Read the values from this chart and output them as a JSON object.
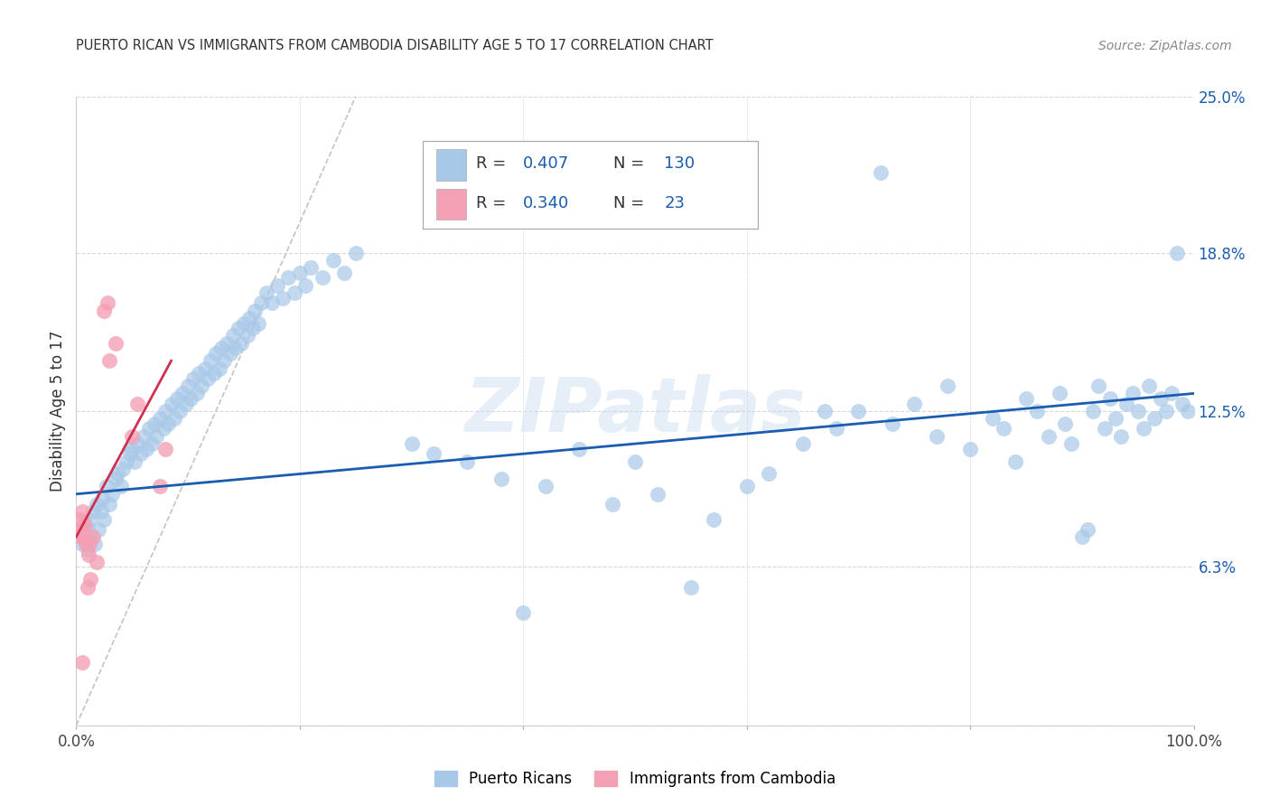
{
  "title": "PUERTO RICAN VS IMMIGRANTS FROM CAMBODIA DISABILITY AGE 5 TO 17 CORRELATION CHART",
  "source": "Source: ZipAtlas.com",
  "ylabel": "Disability Age 5 to 17",
  "xlim": [
    0,
    100
  ],
  "ylim": [
    0,
    25
  ],
  "ytick_labels": [
    "6.3%",
    "12.5%",
    "18.8%",
    "25.0%"
  ],
  "ytick_values": [
    6.3,
    12.5,
    18.8,
    25.0
  ],
  "xtick_positions": [
    0,
    20,
    40,
    60,
    80,
    100
  ],
  "xtick_labels": [
    "0.0%",
    "",
    "",
    "",
    "",
    "100.0%"
  ],
  "watermark": "ZIPatlas",
  "blue_color": "#A8C8E8",
  "pink_color": "#F4A0B5",
  "blue_line_color": "#1A5CB0",
  "pink_line_color": "#D03050",
  "diagonal_color": "#C8C0C8",
  "r_n_color": "#1A5CB0",
  "blue_scatter": [
    [
      0.3,
      7.8
    ],
    [
      0.5,
      7.2
    ],
    [
      0.7,
      7.5
    ],
    [
      0.8,
      8.0
    ],
    [
      1.0,
      7.0
    ],
    [
      1.0,
      7.8
    ],
    [
      1.2,
      8.2
    ],
    [
      1.3,
      7.5
    ],
    [
      1.5,
      8.5
    ],
    [
      1.7,
      7.2
    ],
    [
      1.8,
      8.8
    ],
    [
      2.0,
      7.8
    ],
    [
      2.2,
      8.5
    ],
    [
      2.3,
      9.0
    ],
    [
      2.5,
      8.2
    ],
    [
      2.7,
      9.5
    ],
    [
      3.0,
      8.8
    ],
    [
      3.2,
      9.2
    ],
    [
      3.5,
      9.8
    ],
    [
      3.7,
      10.0
    ],
    [
      4.0,
      9.5
    ],
    [
      4.2,
      10.2
    ],
    [
      4.5,
      10.5
    ],
    [
      4.8,
      10.8
    ],
    [
      5.0,
      11.0
    ],
    [
      5.2,
      10.5
    ],
    [
      5.5,
      11.2
    ],
    [
      5.8,
      10.8
    ],
    [
      6.0,
      11.5
    ],
    [
      6.3,
      11.0
    ],
    [
      6.5,
      11.8
    ],
    [
      6.8,
      11.2
    ],
    [
      7.0,
      12.0
    ],
    [
      7.2,
      11.5
    ],
    [
      7.5,
      12.2
    ],
    [
      7.8,
      11.8
    ],
    [
      8.0,
      12.5
    ],
    [
      8.2,
      12.0
    ],
    [
      8.5,
      12.8
    ],
    [
      8.8,
      12.2
    ],
    [
      9.0,
      13.0
    ],
    [
      9.3,
      12.5
    ],
    [
      9.5,
      13.2
    ],
    [
      9.8,
      12.8
    ],
    [
      10.0,
      13.5
    ],
    [
      10.2,
      13.0
    ],
    [
      10.5,
      13.8
    ],
    [
      10.8,
      13.2
    ],
    [
      11.0,
      14.0
    ],
    [
      11.2,
      13.5
    ],
    [
      11.5,
      14.2
    ],
    [
      11.8,
      13.8
    ],
    [
      12.0,
      14.5
    ],
    [
      12.3,
      14.0
    ],
    [
      12.5,
      14.8
    ],
    [
      12.8,
      14.2
    ],
    [
      13.0,
      15.0
    ],
    [
      13.2,
      14.5
    ],
    [
      13.5,
      15.2
    ],
    [
      13.8,
      14.8
    ],
    [
      14.0,
      15.5
    ],
    [
      14.2,
      15.0
    ],
    [
      14.5,
      15.8
    ],
    [
      14.8,
      15.2
    ],
    [
      15.0,
      16.0
    ],
    [
      15.3,
      15.5
    ],
    [
      15.5,
      16.2
    ],
    [
      15.8,
      15.8
    ],
    [
      16.0,
      16.5
    ],
    [
      16.3,
      16.0
    ],
    [
      16.5,
      16.8
    ],
    [
      17.0,
      17.2
    ],
    [
      17.5,
      16.8
    ],
    [
      18.0,
      17.5
    ],
    [
      18.5,
      17.0
    ],
    [
      19.0,
      17.8
    ],
    [
      19.5,
      17.2
    ],
    [
      20.0,
      18.0
    ],
    [
      20.5,
      17.5
    ],
    [
      21.0,
      18.2
    ],
    [
      22.0,
      17.8
    ],
    [
      23.0,
      18.5
    ],
    [
      24.0,
      18.0
    ],
    [
      25.0,
      18.8
    ],
    [
      30.0,
      11.2
    ],
    [
      32.0,
      10.8
    ],
    [
      35.0,
      10.5
    ],
    [
      38.0,
      9.8
    ],
    [
      40.0,
      4.5
    ],
    [
      42.0,
      9.5
    ],
    [
      45.0,
      11.0
    ],
    [
      48.0,
      8.8
    ],
    [
      50.0,
      10.5
    ],
    [
      52.0,
      9.2
    ],
    [
      55.0,
      5.5
    ],
    [
      57.0,
      8.2
    ],
    [
      60.0,
      9.5
    ],
    [
      62.0,
      10.0
    ],
    [
      65.0,
      11.2
    ],
    [
      67.0,
      12.5
    ],
    [
      68.0,
      11.8
    ],
    [
      70.0,
      12.5
    ],
    [
      72.0,
      22.0
    ],
    [
      73.0,
      12.0
    ],
    [
      75.0,
      12.8
    ],
    [
      77.0,
      11.5
    ],
    [
      78.0,
      13.5
    ],
    [
      80.0,
      11.0
    ],
    [
      82.0,
      12.2
    ],
    [
      83.0,
      11.8
    ],
    [
      84.0,
      10.5
    ],
    [
      85.0,
      13.0
    ],
    [
      86.0,
      12.5
    ],
    [
      87.0,
      11.5
    ],
    [
      88.0,
      13.2
    ],
    [
      88.5,
      12.0
    ],
    [
      89.0,
      11.2
    ],
    [
      90.0,
      7.5
    ],
    [
      90.5,
      7.8
    ],
    [
      91.0,
      12.5
    ],
    [
      91.5,
      13.5
    ],
    [
      92.0,
      11.8
    ],
    [
      92.5,
      13.0
    ],
    [
      93.0,
      12.2
    ],
    [
      93.5,
      11.5
    ],
    [
      94.0,
      12.8
    ],
    [
      94.5,
      13.2
    ],
    [
      95.0,
      12.5
    ],
    [
      95.5,
      11.8
    ],
    [
      96.0,
      13.5
    ],
    [
      96.5,
      12.2
    ],
    [
      97.0,
      13.0
    ],
    [
      97.5,
      12.5
    ],
    [
      98.0,
      13.2
    ],
    [
      98.5,
      18.8
    ],
    [
      99.0,
      12.8
    ],
    [
      99.5,
      12.5
    ]
  ],
  "pink_scatter": [
    [
      0.2,
      7.8
    ],
    [
      0.3,
      8.2
    ],
    [
      0.4,
      7.5
    ],
    [
      0.5,
      8.5
    ],
    [
      0.6,
      7.8
    ],
    [
      0.7,
      8.0
    ],
    [
      0.8,
      7.5
    ],
    [
      0.9,
      7.2
    ],
    [
      1.0,
      5.5
    ],
    [
      1.1,
      6.8
    ],
    [
      1.2,
      7.2
    ],
    [
      1.3,
      5.8
    ],
    [
      1.5,
      7.5
    ],
    [
      1.8,
      6.5
    ],
    [
      2.5,
      16.5
    ],
    [
      2.8,
      16.8
    ],
    [
      3.0,
      14.5
    ],
    [
      3.5,
      15.2
    ],
    [
      5.0,
      11.5
    ],
    [
      5.5,
      12.8
    ],
    [
      7.5,
      9.5
    ],
    [
      8.0,
      11.0
    ],
    [
      0.5,
      2.5
    ]
  ],
  "blue_trend_x": [
    0,
    100
  ],
  "blue_trend_y": [
    9.2,
    13.2
  ],
  "pink_trend_x": [
    0,
    8.5
  ],
  "pink_trend_y": [
    7.5,
    14.5
  ],
  "grid_color": "#D8D8D8",
  "background_color": "#FFFFFF",
  "legend_box_color": "#BBBBBB"
}
